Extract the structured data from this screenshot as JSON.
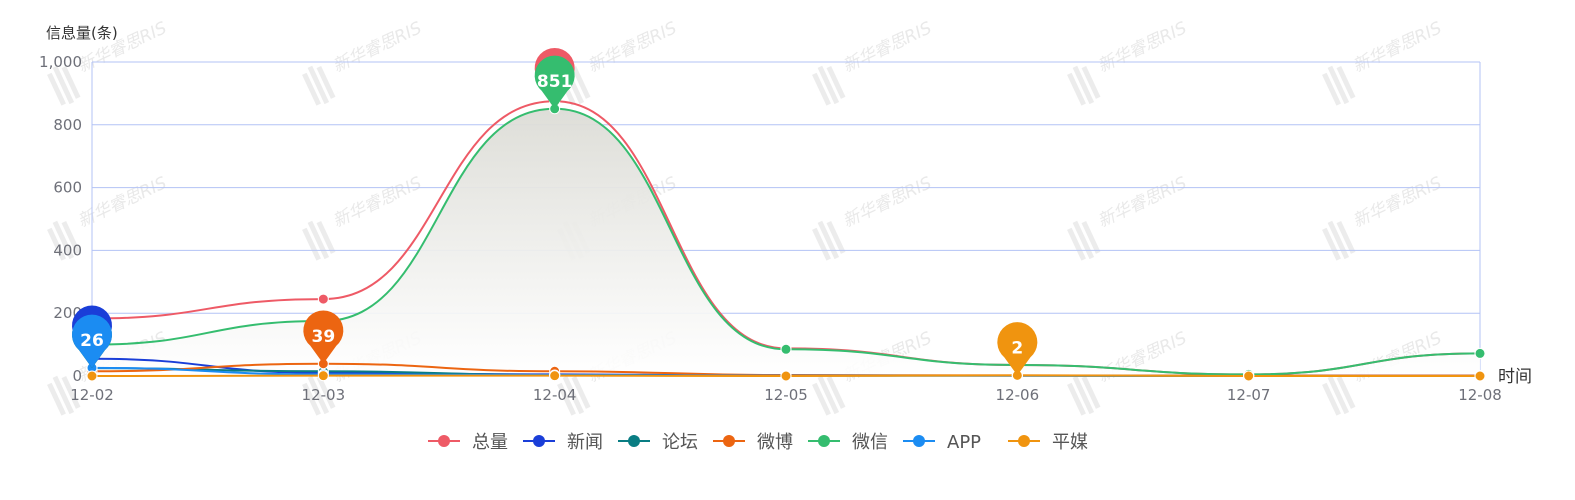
{
  "chart_data": {
    "type": "line",
    "ylabel": "信息量(条)",
    "xlabel": "时间",
    "categories": [
      "12-02",
      "12-03",
      "12-04",
      "12-05",
      "12-06",
      "12-07",
      "12-08"
    ],
    "ylim": [
      0,
      1000
    ],
    "yticks": [
      "0",
      "200",
      "400",
      "600",
      "800",
      "1,000"
    ],
    "grid": true,
    "legend_position": "bottom",
    "watermark": "新华睿思RIS",
    "series": [
      {
        "name": "总量",
        "color": "#ee5a66",
        "values": [
          183,
          245,
          875,
          88,
          35,
          5,
          72
        ],
        "max_label": "",
        "smooth": true
      },
      {
        "name": "新闻",
        "color": "#1a3ed8",
        "values": [
          55,
          10,
          5,
          2,
          1,
          1,
          1
        ],
        "max_label": "",
        "smooth": true
      },
      {
        "name": "论坛",
        "color": "#097d83",
        "values": [
          25,
          15,
          3,
          1,
          1,
          0,
          0
        ],
        "max_label": "",
        "smooth": true
      },
      {
        "name": "微博",
        "color": "#ec6511",
        "values": [
          15,
          39,
          15,
          3,
          2,
          1,
          1
        ],
        "max_label": "39",
        "smooth": true
      },
      {
        "name": "微信",
        "color": "#35bd6f",
        "values": [
          100,
          175,
          851,
          85,
          35,
          5,
          72
        ],
        "max_label": "851",
        "smooth": true,
        "area": true
      },
      {
        "name": "APP",
        "color": "#1b8cf2",
        "values": [
          26,
          5,
          3,
          1,
          1,
          0,
          0
        ],
        "max_label": "26",
        "smooth": true
      },
      {
        "name": "平媒",
        "color": "#f0940f",
        "values": [
          0,
          1,
          1,
          0,
          2,
          0,
          0
        ],
        "max_label": "2",
        "smooth": true
      }
    ]
  }
}
